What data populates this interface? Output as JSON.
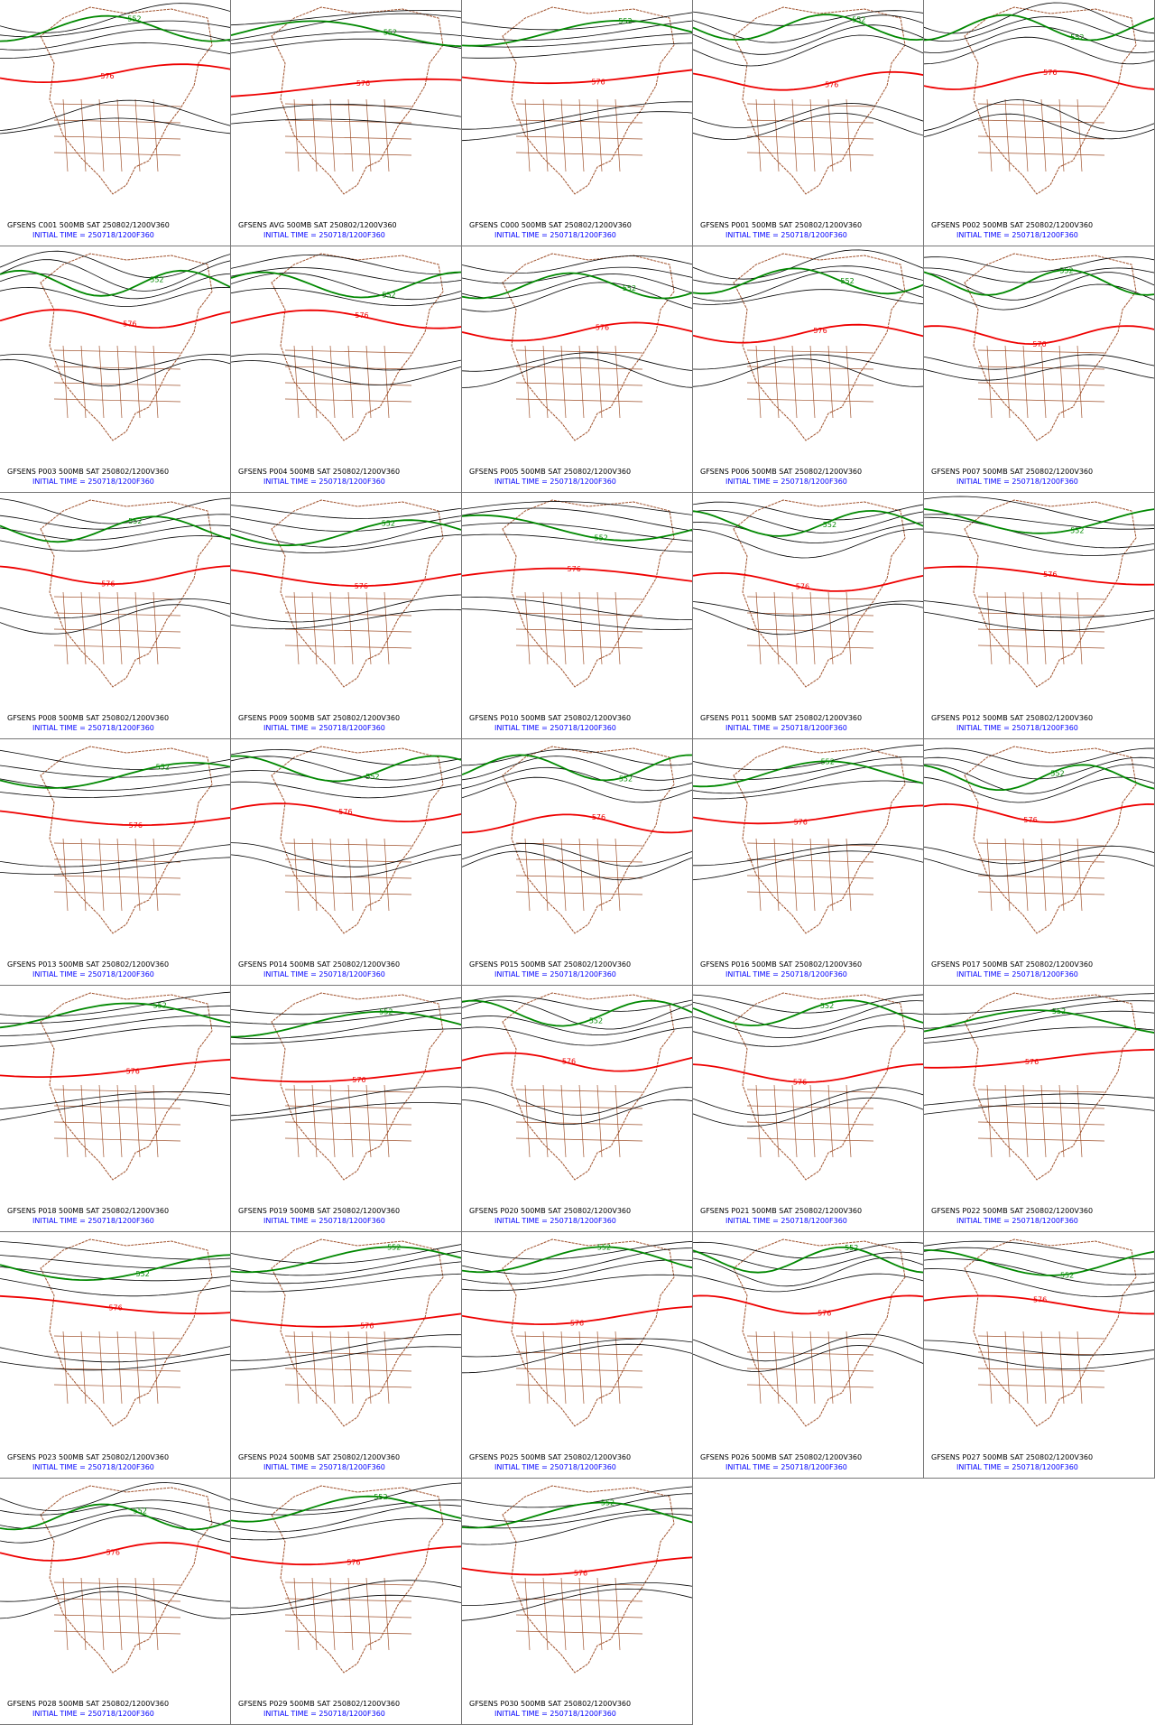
{
  "panels": [
    {
      "model_line": "GFSENS C001 500MB SAT 250802/1200V360",
      "init_line": "INITIAL TIME = 250718/1200F360",
      "labels": [
        "576",
        "552"
      ]
    },
    {
      "model_line": "GFSENS AVG 500MB SAT 250802/1200V360",
      "init_line": "INITIAL TIME = 250718/1200F360",
      "labels": [
        "576",
        "552"
      ]
    },
    {
      "model_line": "GFSENS C000 500MB SAT 250802/1200V360",
      "init_line": "INITIAL TIME = 250718/1200F360",
      "labels": [
        "576",
        "552"
      ]
    },
    {
      "model_line": "GFSENS P001 500MB SAT 250802/1200V360",
      "init_line": "INITIAL TIME = 250718/1200F360",
      "labels": [
        "576",
        "552"
      ]
    },
    {
      "model_line": "GFSENS P002 500MB SAT 250802/1200V360",
      "init_line": "INITIAL TIME = 250718/1200F360",
      "labels": [
        "576",
        "552"
      ]
    },
    {
      "model_line": "GFSENS P003 500MB SAT 250802/1200V360",
      "init_line": "INITIAL TIME = 250718/1200F360",
      "labels": [
        "576",
        "552"
      ]
    },
    {
      "model_line": "GFSENS P004 500MB SAT 250802/1200V360",
      "init_line": "INITIAL TIME = 250718/1200F360",
      "labels": [
        "576",
        "552"
      ]
    },
    {
      "model_line": "GFSENS P005 500MB SAT 250802/1200V360",
      "init_line": "INITIAL TIME = 250718/1200F360",
      "labels": [
        "576",
        "552"
      ]
    },
    {
      "model_line": "GFSENS P006 500MB SAT 250802/1200V360",
      "init_line": "INITIAL TIME = 250718/1200F360",
      "labels": [
        "576",
        "552"
      ]
    },
    {
      "model_line": "GFSENS P007 500MB SAT 250802/1200V360",
      "init_line": "INITIAL TIME = 250718/1200F360",
      "labels": [
        "576",
        "552"
      ]
    },
    {
      "model_line": "GFSENS P008 500MB SAT 250802/1200V360",
      "init_line": "INITIAL TIME = 250718/1200F360",
      "labels": [
        "576",
        "552"
      ]
    },
    {
      "model_line": "GFSENS P009 500MB SAT 250802/1200V360",
      "init_line": "INITIAL TIME = 250718/1200F360",
      "labels": [
        "576",
        "552"
      ]
    },
    {
      "model_line": "GFSENS P010 500MB SAT 250802/1200V360",
      "init_line": "INITIAL TIME = 250718/1200F360",
      "labels": [
        "576",
        "552"
      ]
    },
    {
      "model_line": "GFSENS P011 500MB SAT 250802/1200V360",
      "init_line": "INITIAL TIME = 250718/1200F360",
      "labels": [
        "576",
        "552"
      ]
    },
    {
      "model_line": "GFSENS P012 500MB SAT 250802/1200V360",
      "init_line": "INITIAL TIME = 250718/1200F360",
      "labels": [
        "576",
        "552"
      ]
    },
    {
      "model_line": "GFSENS P013 500MB SAT 250802/1200V360",
      "init_line": "INITIAL TIME = 250718/1200F360",
      "labels": [
        "576",
        "552"
      ]
    },
    {
      "model_line": "GFSENS P014 500MB SAT 250802/1200V360",
      "init_line": "INITIAL TIME = 250718/1200F360",
      "labels": [
        "576",
        "552"
      ]
    },
    {
      "model_line": "GFSENS P015 500MB SAT 250802/1200V360",
      "init_line": "INITIAL TIME = 250718/1200F360",
      "labels": [
        "576",
        "552"
      ]
    },
    {
      "model_line": "GFSENS P016 500MB SAT 250802/1200V360",
      "init_line": "INITIAL TIME = 250718/1200F360",
      "labels": [
        "576",
        "552"
      ]
    },
    {
      "model_line": "GFSENS P017 500MB SAT 250802/1200V360",
      "init_line": "INITIAL TIME = 250718/1200F360",
      "labels": [
        "576",
        "552"
      ]
    },
    {
      "model_line": "GFSENS P018 500MB SAT 250802/1200V360",
      "init_line": "INITIAL TIME = 250718/1200F360",
      "labels": [
        "576",
        "552"
      ]
    },
    {
      "model_line": "GFSENS P019 500MB SAT 250802/1200V360",
      "init_line": "INITIAL TIME = 250718/1200F360",
      "labels": [
        "576",
        "552"
      ]
    },
    {
      "model_line": "GFSENS P020 500MB SAT 250802/1200V360",
      "init_line": "INITIAL TIME = 250718/1200F360",
      "labels": [
        "576",
        "552"
      ]
    },
    {
      "model_line": "GFSENS P021 500MB SAT 250802/1200V360",
      "init_line": "INITIAL TIME = 250718/1200F360",
      "labels": [
        "576",
        "552"
      ]
    },
    {
      "model_line": "GFSENS P022 500MB SAT 250802/1200V360",
      "init_line": "INITIAL TIME = 250718/1200F360",
      "labels": [
        "576",
        "552"
      ]
    },
    {
      "model_line": "GFSENS P023 500MB SAT 250802/1200V360",
      "init_line": "INITIAL TIME = 250718/1200F360",
      "labels": [
        "576",
        "552"
      ]
    },
    {
      "model_line": "GFSENS P024 500MB SAT 250802/1200V360",
      "init_line": "INITIAL TIME = 250718/1200F360",
      "labels": [
        "576",
        "552"
      ]
    },
    {
      "model_line": "GFSENS P025 500MB SAT 250802/1200V360",
      "init_line": "INITIAL TIME = 250718/1200F360",
      "labels": [
        "576",
        "552"
      ]
    },
    {
      "model_line": "GFSENS P026 500MB SAT 250802/1200V360",
      "init_line": "INITIAL TIME = 250718/1200F360",
      "labels": [
        "576",
        "552"
      ]
    },
    {
      "model_line": "GFSENS P027 500MB SAT 250802/1200V360",
      "init_line": "INITIAL TIME = 250718/1200F360",
      "labels": [
        "576",
        "552"
      ]
    },
    {
      "model_line": "GFSENS P028 500MB SAT 250802/1200V360",
      "init_line": "INITIAL TIME = 250718/1200F360",
      "labels": [
        "576",
        "552"
      ]
    },
    {
      "model_line": "GFSENS P029 500MB SAT 250802/1200V360",
      "init_line": "INITIAL TIME = 250718/1200F360",
      "labels": [
        "576",
        "552"
      ]
    },
    {
      "model_line": "GFSENS P030 500MB SAT 250802/1200V360",
      "init_line": "INITIAL TIME = 250718/1200F360",
      "labels": [
        "576",
        "552"
      ]
    }
  ]
}
